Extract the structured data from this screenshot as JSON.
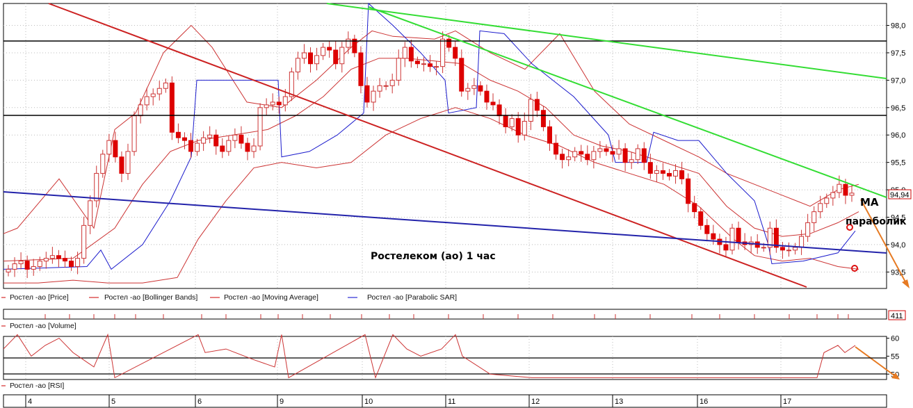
{
  "chart_data": {
    "type": "candlestick",
    "title": "Ростелеком (ао)   1 час",
    "price_axis": {
      "ylim": [
        93.2,
        98.4
      ],
      "ticks": [
        "98,0",
        "97,5",
        "97,0",
        "96,5",
        "96,0",
        "95,5",
        "95,0",
        "94,5",
        "94,0",
        "93,5"
      ],
      "tick_values": [
        98.0,
        97.5,
        97.0,
        96.5,
        96.0,
        95.5,
        95.0,
        94.5,
        94.0,
        93.5
      ]
    },
    "last_price_label": "94,94",
    "volume_label": "411",
    "rsi_axis": {
      "ticks": [
        "60",
        "55",
        "50"
      ],
      "tick_values": [
        60,
        55,
        50
      ],
      "ylim": [
        48.5,
        60.5
      ]
    },
    "x_axis": {
      "day_labels": [
        "4",
        "5",
        "6",
        "9",
        "10",
        "11",
        "12",
        "13",
        "16",
        "17"
      ]
    },
    "legend": [
      {
        "name": "Ростел -ао [Price]",
        "color": "#cc0000"
      },
      {
        "name": "Ростел -ао [Bollinger Bands]",
        "color": "#cc0000"
      },
      {
        "name": "Ростел -ао [Moving Average]",
        "color": "#cc0000"
      },
      {
        "name": "Ростел -ао [Parabolic SAR]",
        "color": "#0000cc"
      }
    ],
    "volume_legend": "Ростел -ао [Volume]",
    "rsi_legend": "Ростел -ао [RSI]",
    "annotations": [
      "MA",
      "параболик"
    ],
    "horizontal_levels": [
      97.8,
      96.4
    ],
    "candles_close": [
      93.55,
      93.65,
      93.7,
      93.55,
      93.6,
      93.7,
      93.75,
      93.8,
      93.75,
      93.7,
      93.6,
      93.75,
      94.35,
      94.8,
      95.3,
      95.65,
      95.9,
      95.6,
      95.3,
      95.7,
      96.35,
      96.55,
      96.7,
      96.75,
      96.85,
      96.95,
      96.05,
      95.95,
      95.9,
      95.7,
      95.85,
      95.95,
      96.0,
      95.8,
      95.7,
      95.9,
      96.0,
      95.85,
      95.7,
      95.8,
      96.5,
      96.55,
      96.6,
      96.55,
      96.7,
      97.15,
      97.4,
      97.5,
      97.3,
      97.45,
      97.6,
      97.55,
      97.3,
      97.6,
      97.75,
      97.5,
      96.9,
      96.6,
      96.8,
      96.9,
      96.9,
      97.0,
      97.4,
      97.6,
      97.35,
      97.3,
      97.3,
      97.25,
      97.25,
      97.75,
      97.6,
      97.4,
      96.8,
      96.85,
      96.9,
      96.8,
      96.6,
      96.55,
      96.35,
      96.15,
      96.3,
      96.0,
      96.25,
      96.65,
      96.45,
      96.15,
      95.85,
      95.65,
      95.55,
      95.6,
      95.7,
      95.65,
      95.55,
      95.7,
      95.75,
      95.7,
      95.65,
      95.75,
      95.5,
      95.55,
      95.75,
      95.5,
      95.3,
      95.35,
      95.3,
      95.25,
      95.35,
      95.2,
      94.75,
      94.6,
      94.35,
      94.2,
      94.1,
      94.0,
      93.9,
      94.3,
      94.05,
      94.0,
      94.05,
      93.95,
      93.95,
      94.3,
      93.95,
      93.9,
      93.9,
      93.95,
      94.15,
      94.4,
      94.6,
      94.75,
      94.85,
      94.95,
      95.1,
      94.9,
      94.94
    ],
    "bollinger_upper": [
      [
        0,
        94.2
      ],
      [
        20,
        94.3
      ],
      [
        80,
        95.2
      ],
      [
        130,
        94.3
      ],
      [
        160,
        96.1
      ],
      [
        190,
        96.4
      ],
      [
        230,
        97.5
      ],
      [
        270,
        98.0
      ],
      [
        300,
        97.6
      ],
      [
        350,
        96.6
      ],
      [
        400,
        96.5
      ],
      [
        450,
        97.0
      ],
      [
        500,
        97.6
      ],
      [
        530,
        97.9
      ],
      [
        560,
        97.8
      ],
      [
        620,
        97.75
      ],
      [
        650,
        97.9
      ],
      [
        700,
        97.5
      ],
      [
        750,
        97.2
      ],
      [
        800,
        97.85
      ],
      [
        850,
        96.8
      ],
      [
        900,
        96.2
      ],
      [
        950,
        95.9
      ],
      [
        1000,
        95.6
      ],
      [
        1040,
        95.3
      ],
      [
        1080,
        95.1
      ],
      [
        1120,
        94.9
      ],
      [
        1160,
        94.7
      ],
      [
        1200,
        95.0
      ],
      [
        1230,
        95.1
      ]
    ],
    "bollinger_lower": [
      [
        0,
        93.3
      ],
      [
        50,
        93.3
      ],
      [
        100,
        93.35
      ],
      [
        150,
        93.3
      ],
      [
        200,
        93.3
      ],
      [
        250,
        93.4
      ],
      [
        280,
        94.1
      ],
      [
        320,
        94.8
      ],
      [
        360,
        95.4
      ],
      [
        400,
        95.5
      ],
      [
        450,
        95.4
      ],
      [
        500,
        95.5
      ],
      [
        550,
        96.0
      ],
      [
        600,
        96.3
      ],
      [
        650,
        96.5
      ],
      [
        700,
        96.3
      ],
      [
        750,
        96.0
      ],
      [
        800,
        95.8
      ],
      [
        850,
        95.5
      ],
      [
        900,
        95.3
      ],
      [
        950,
        95.1
      ],
      [
        1000,
        94.7
      ],
      [
        1050,
        94.1
      ],
      [
        1080,
        93.8
      ],
      [
        1120,
        93.7
      ],
      [
        1160,
        93.75
      ],
      [
        1200,
        93.6
      ],
      [
        1230,
        93.55
      ]
    ],
    "moving_average": [
      [
        0,
        93.7
      ],
      [
        100,
        93.75
      ],
      [
        160,
        94.3
      ],
      [
        200,
        95.1
      ],
      [
        240,
        95.7
      ],
      [
        280,
        95.9
      ],
      [
        330,
        96.0
      ],
      [
        380,
        96.1
      ],
      [
        420,
        96.35
      ],
      [
        460,
        96.7
      ],
      [
        500,
        97.2
      ],
      [
        540,
        97.4
      ],
      [
        580,
        97.4
      ],
      [
        620,
        97.35
      ],
      [
        660,
        97.3
      ],
      [
        700,
        97.0
      ],
      [
        740,
        96.8
      ],
      [
        780,
        96.5
      ],
      [
        820,
        96.0
      ],
      [
        860,
        95.8
      ],
      [
        900,
        95.7
      ],
      [
        950,
        95.5
      ],
      [
        1000,
        95.3
      ],
      [
        1040,
        94.7
      ],
      [
        1080,
        94.3
      ],
      [
        1120,
        94.15
      ],
      [
        1160,
        94.2
      ],
      [
        1200,
        94.4
      ],
      [
        1230,
        94.6
      ]
    ],
    "parabolic_sar": [
      [
        0,
        93.55
      ],
      [
        120,
        93.6
      ],
      [
        140,
        93.9
      ],
      [
        155,
        93.55
      ],
      [
        200,
        94.0
      ],
      [
        240,
        94.8
      ],
      [
        270,
        95.6
      ],
      [
        278,
        97.0
      ],
      [
        300,
        97.0
      ],
      [
        395,
        97.0
      ],
      [
        400,
        95.6
      ],
      [
        440,
        95.7
      ],
      [
        480,
        96.0
      ],
      [
        518,
        96.4
      ],
      [
        525,
        98.4
      ],
      [
        560,
        98.0
      ],
      [
        600,
        97.5
      ],
      [
        635,
        97.0
      ],
      [
        640,
        96.4
      ],
      [
        680,
        96.5
      ],
      [
        685,
        97.9
      ],
      [
        720,
        97.85
      ],
      [
        760,
        97.3
      ],
      [
        820,
        96.7
      ],
      [
        870,
        96.0
      ],
      [
        880,
        95.5
      ],
      [
        925,
        95.5
      ],
      [
        935,
        96.05
      ],
      [
        970,
        95.9
      ],
      [
        1000,
        95.9
      ],
      [
        1040,
        95.3
      ],
      [
        1080,
        94.8
      ],
      [
        1100,
        94.0
      ],
      [
        1105,
        93.65
      ],
      [
        1150,
        93.7
      ],
      [
        1200,
        93.85
      ],
      [
        1225,
        94.25
      ]
    ],
    "rsi": [
      [
        0,
        57
      ],
      [
        20,
        61
      ],
      [
        40,
        55
      ],
      [
        60,
        58
      ],
      [
        80,
        60
      ],
      [
        100,
        56
      ],
      [
        130,
        52
      ],
      [
        150,
        61
      ],
      [
        160,
        49
      ],
      [
        280,
        61
      ],
      [
        290,
        56
      ],
      [
        320,
        57
      ],
      [
        360,
        54
      ],
      [
        390,
        52
      ],
      [
        400,
        61
      ],
      [
        410,
        49
      ],
      [
        520,
        61
      ],
      [
        535,
        49
      ],
      [
        560,
        61
      ],
      [
        580,
        57
      ],
      [
        600,
        55
      ],
      [
        630,
        57
      ],
      [
        650,
        61
      ],
      [
        660,
        55
      ],
      [
        700,
        50
      ],
      [
        760,
        49
      ],
      [
        1170,
        49
      ],
      [
        1180,
        56
      ],
      [
        1200,
        58
      ],
      [
        1210,
        56
      ],
      [
        1225,
        58
      ]
    ],
    "volume_spikes": [
      60,
      95,
      130,
      160,
      190,
      230,
      285,
      320,
      370,
      395,
      430,
      470,
      515,
      555,
      590,
      640,
      690,
      740,
      790,
      850,
      880,
      930,
      990,
      1030,
      1080,
      1130,
      1170,
      1200,
      1215
    ]
  }
}
